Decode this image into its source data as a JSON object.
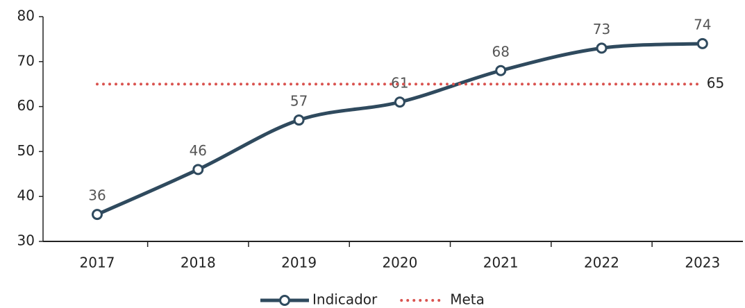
{
  "chart_data": {
    "type": "line",
    "categories": [
      "2017",
      "2018",
      "2019",
      "2020",
      "2021",
      "2022",
      "2023"
    ],
    "series": [
      {
        "name": "Indicador",
        "color": "#2f4a5e",
        "values": [
          36,
          46,
          57,
          61,
          68,
          73,
          74
        ]
      },
      {
        "name": "Meta",
        "color": "#d9534f",
        "values": [
          65,
          65,
          65,
          65,
          65,
          65,
          65
        ],
        "dotted": true
      }
    ],
    "ylim": [
      30,
      80
    ],
    "yticks": [
      30,
      40,
      50,
      60,
      70,
      80
    ],
    "grid": false,
    "legend": "bottom"
  }
}
